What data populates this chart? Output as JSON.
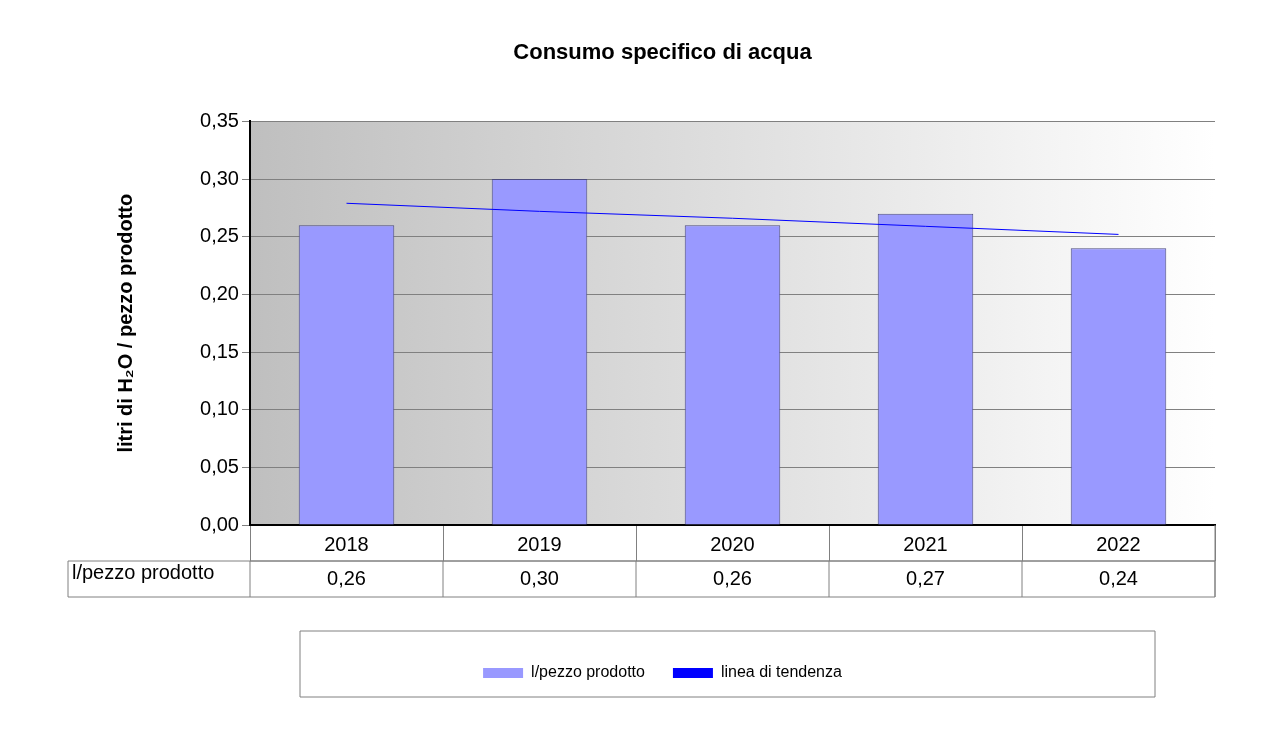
{
  "chart_data": {
    "type": "bar",
    "title": "Consumo specifico di acqua",
    "ylabel": "litri di H₂O / pezzo prodotto",
    "categories": [
      "2018",
      "2019",
      "2020",
      "2021",
      "2022"
    ],
    "series": [
      {
        "name": "l/pezzo prodotto",
        "type": "bar",
        "color": "#9999ff",
        "values": [
          0.26,
          0.3,
          0.26,
          0.27,
          0.24
        ],
        "value_labels": [
          "0,26",
          "0,30",
          "0,26",
          "0,27",
          "0,24"
        ]
      },
      {
        "name": "linea di tendenza",
        "type": "line",
        "color": "#0000ff",
        "values": [
          0.279,
          0.272,
          0.266,
          0.259,
          0.252
        ],
        "marker": "none",
        "line_style": "solid"
      }
    ],
    "ylim": [
      0,
      0.35
    ],
    "yticks": [
      {
        "value": 0,
        "label": "0,00"
      },
      {
        "value": 0.05,
        "label": "0,05"
      },
      {
        "value": 0.1,
        "label": "0,10"
      },
      {
        "value": 0.15,
        "label": "0,15"
      },
      {
        "value": 0.2,
        "label": "0,20"
      },
      {
        "value": 0.25,
        "label": "0,25"
      },
      {
        "value": 0.3,
        "label": "0,30"
      },
      {
        "value": 0.35,
        "label": "0,35"
      }
    ],
    "grid": "y",
    "legend": "bottom"
  }
}
